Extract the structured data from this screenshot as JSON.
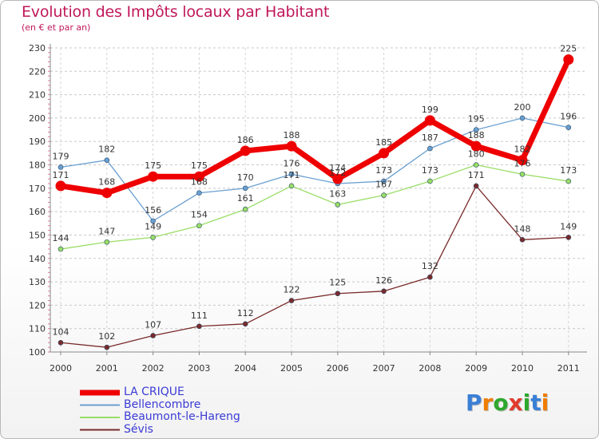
{
  "header": {
    "title": "Evolution des Impôts locaux par Habitant",
    "subtitle": "(en € et par an)"
  },
  "logo": {
    "text": "Proxiti",
    "letters": [
      {
        "ch": "P",
        "color": "#3a7fd6"
      },
      {
        "ch": "r",
        "color": "#f07c00"
      },
      {
        "ch": "o",
        "color": "#2da82d"
      },
      {
        "ch": "x",
        "color": "#e03a2c"
      },
      {
        "ch": "i",
        "color": "#2da82d"
      },
      {
        "ch": "t",
        "color": "#3a7fd6"
      },
      {
        "ch": "i",
        "color": "#f07c00"
      }
    ]
  },
  "chart_data": {
    "type": "line",
    "title": "Evolution des Impôts locaux par Habitant",
    "subtitle": "(en € et par an)",
    "xlabel": "",
    "ylabel": "",
    "ylim": [
      100,
      230
    ],
    "yticks": [
      "100",
      "110",
      "120",
      "130",
      "140",
      "150",
      "160",
      "170",
      "180",
      "190",
      "200",
      "210",
      "220",
      "230"
    ],
    "categories": [
      "2000",
      "2001",
      "2002",
      "2003",
      "2004",
      "2005",
      "2006",
      "2007",
      "2008",
      "2009",
      "2010",
      "2011"
    ],
    "series": [
      {
        "name": "LA CRIQUE",
        "color": "#ee0000",
        "values": [
          171,
          168,
          175,
          175,
          186,
          188,
          174,
          185,
          199,
          188,
          182,
          225
        ]
      },
      {
        "name": "Bellencombre",
        "color": "#6a9fd0",
        "values": [
          179,
          182,
          156,
          168,
          170,
          176,
          172,
          173,
          187,
          195,
          200,
          196
        ]
      },
      {
        "name": "Beaumont-le-Hareng",
        "color": "#99dd66",
        "values": [
          144,
          147,
          149,
          154,
          161,
          171,
          163,
          167,
          173,
          180,
          176,
          173
        ]
      },
      {
        "name": "Sévis",
        "color": "#7a2a2a",
        "values": [
          104,
          102,
          107,
          111,
          112,
          122,
          125,
          126,
          132,
          171,
          148,
          149
        ]
      }
    ],
    "legend_position": "bottom-left"
  }
}
